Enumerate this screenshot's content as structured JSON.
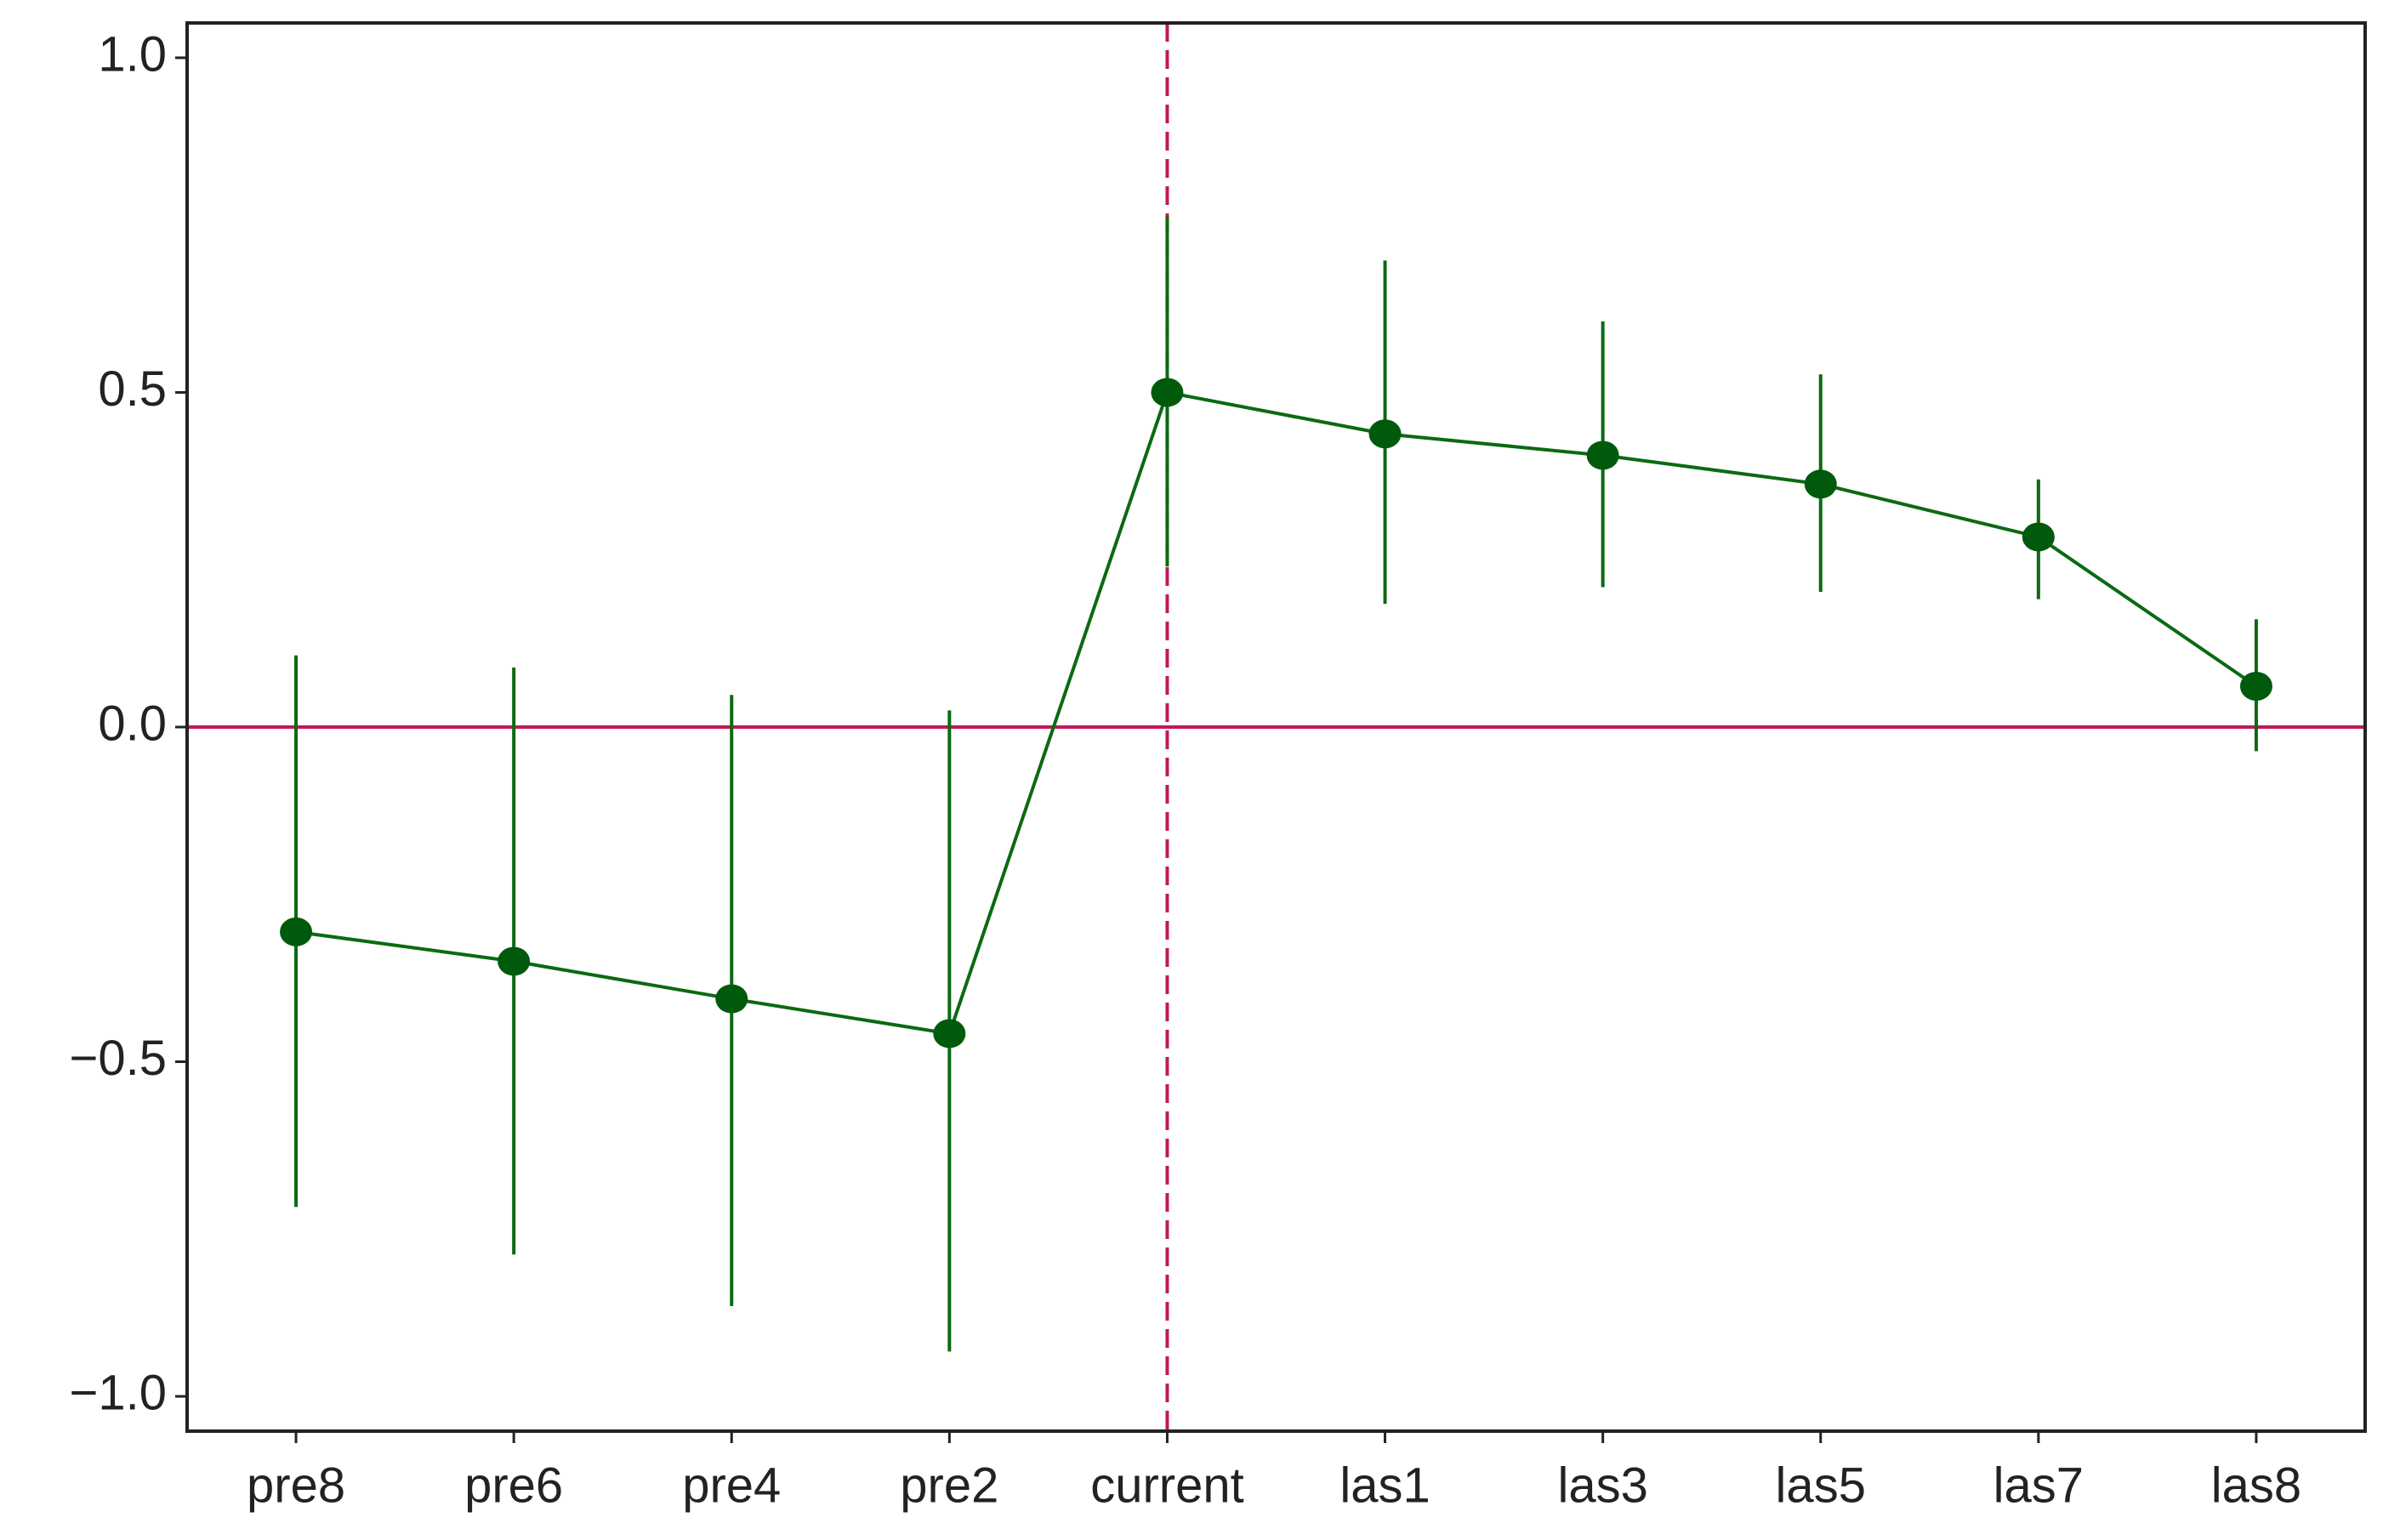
{
  "chart_data": {
    "type": "errorbar-line",
    "categories": [
      "pre8",
      "pre6",
      "pre4",
      "pre2",
      "current",
      "las1",
      "las3",
      "las5",
      "las7",
      "las8"
    ],
    "series": [
      {
        "color": "#0b6a12",
        "values": [
          -0.306,
          -0.35,
          -0.406,
          -0.458,
          0.5,
          0.438,
          0.406,
          0.363,
          0.284,
          0.061
        ],
        "lower": [
          -0.717,
          -0.788,
          -0.865,
          -0.933,
          0.24,
          0.184,
          0.209,
          0.202,
          0.191,
          -0.036
        ],
        "upper": [
          0.107,
          0.089,
          0.048,
          0.025,
          0.763,
          0.697,
          0.606,
          0.527,
          0.37,
          0.161
        ]
      }
    ],
    "ylim": [
      -1.052,
      1.052
    ],
    "yticks": [
      {
        "value": -1.0,
        "label": "−1.0"
      },
      {
        "value": -0.5,
        "label": "−0.5"
      },
      {
        "value": 0,
        "label": "0.0"
      },
      {
        "value": 0.5,
        "label": "0.5"
      },
      {
        "value": 1.0,
        "label": "1.0"
      }
    ],
    "hline": 0,
    "hline_color": "#c2185b",
    "vline": "current",
    "vline_color": "#c2185b",
    "vline_style": "dashed"
  }
}
